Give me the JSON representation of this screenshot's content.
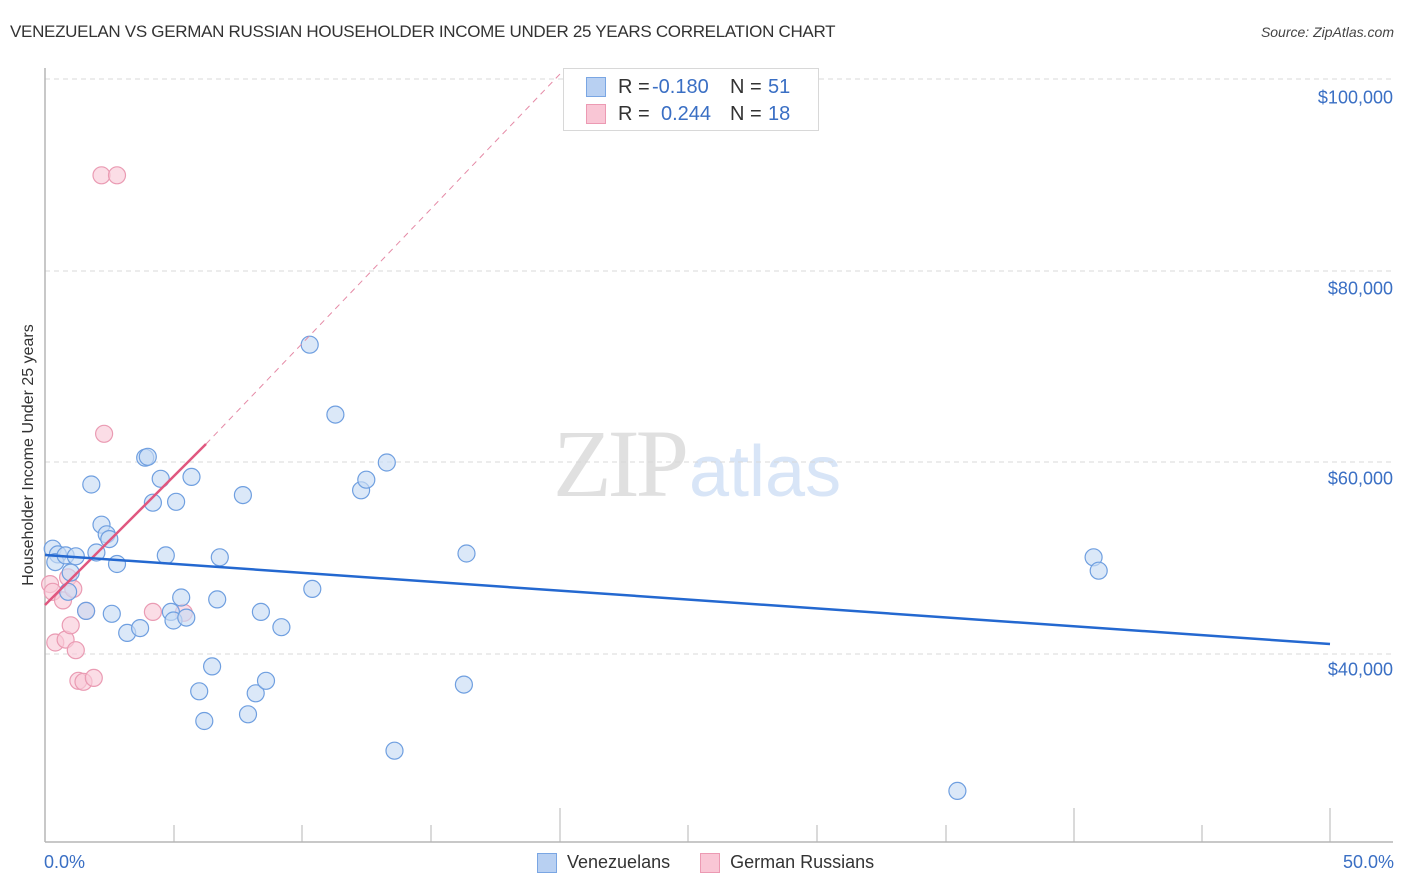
{
  "header": {
    "title": "VENEZUELAN VS GERMAN RUSSIAN HOUSEHOLDER INCOME UNDER 25 YEARS CORRELATION CHART",
    "source": "Source: ZipAtlas.com"
  },
  "legend": {
    "rows": [
      {
        "name": "Venezuelans",
        "r_label": "R =",
        "r_value": "-0.180",
        "n_label": "N =",
        "n_value": "51",
        "color": "#b8d0f2",
        "border": "#7aa6e3"
      },
      {
        "name": "German Russians",
        "r_label": "R =",
        "r_value": "0.244",
        "n_label": "N =",
        "n_value": "18",
        "color": "#f9c6d5",
        "border": "#ec9ab3"
      }
    ]
  },
  "axes": {
    "y_label": "Householder Income Under 25 years",
    "y_ticks": [
      "$100,000",
      "$80,000",
      "$60,000",
      "$40,000"
    ],
    "x_left_label": "0.0%",
    "x_right_label": "50.0%"
  },
  "watermark": {
    "zip": "ZIP",
    "atlas": "atlas"
  },
  "colors": {
    "blue_point_fill": "#c7dbf5",
    "blue_point_stroke": "#6f9fe0",
    "blue_trend": "#2468d0",
    "pink_point_fill": "#f9cbd8",
    "pink_point_stroke": "#ea9bb3",
    "pink_trend": "#e0577f",
    "tick_label": "#3a6fc4",
    "grid": "#d9d9d9"
  },
  "chart_data": {
    "type": "scatter",
    "title": "VENEZUELAN VS GERMAN RUSSIAN HOUSEHOLDER INCOME UNDER 25 YEARS CORRELATION CHART",
    "xlabel": "",
    "ylabel": "Householder Income Under 25 years",
    "xlim": [
      0,
      50
    ],
    "ylim": [
      22500,
      102500
    ],
    "x_unit": "%",
    "y_ticks": [
      40000,
      60000,
      80000,
      100000
    ],
    "grid": true,
    "legend_position": "bottom-center",
    "series": [
      {
        "name": "Venezuelans",
        "r": -0.18,
        "n": 51,
        "trend": {
          "x": [
            0,
            50
          ],
          "y": [
            49900,
            40900
          ]
        },
        "points": [
          [
            0.3,
            51.0
          ],
          [
            0.5,
            50.4
          ],
          [
            0.4,
            49.6
          ],
          [
            0.8,
            50.3
          ],
          [
            1.2,
            50.2
          ],
          [
            1.0,
            48.5
          ],
          [
            0.9,
            46.5
          ],
          [
            1.6,
            44.5
          ],
          [
            1.8,
            57.7
          ],
          [
            2.0,
            50.6
          ],
          [
            2.2,
            53.5
          ],
          [
            2.4,
            52.5
          ],
          [
            2.5,
            52.0
          ],
          [
            2.8,
            49.4
          ],
          [
            2.6,
            44.2
          ],
          [
            3.2,
            42.2
          ],
          [
            3.7,
            42.7
          ],
          [
            3.9,
            60.5
          ],
          [
            4.0,
            60.6
          ],
          [
            4.2,
            55.8
          ],
          [
            4.5,
            58.3
          ],
          [
            4.7,
            50.3
          ],
          [
            4.9,
            44.4
          ],
          [
            5.0,
            43.5
          ],
          [
            5.1,
            55.9
          ],
          [
            5.3,
            45.9
          ],
          [
            5.5,
            43.8
          ],
          [
            5.7,
            58.5
          ],
          [
            6.0,
            36.1
          ],
          [
            6.2,
            33.0
          ],
          [
            6.5,
            38.7
          ],
          [
            6.7,
            45.7
          ],
          [
            6.8,
            50.1
          ],
          [
            7.7,
            56.6
          ],
          [
            7.9,
            33.7
          ],
          [
            8.2,
            35.9
          ],
          [
            8.4,
            44.4
          ],
          [
            8.6,
            37.2
          ],
          [
            9.2,
            42.8
          ],
          [
            10.3,
            72.3
          ],
          [
            10.4,
            46.8
          ],
          [
            11.3,
            65.0
          ],
          [
            12.3,
            57.1
          ],
          [
            12.5,
            58.2
          ],
          [
            13.3,
            60.0
          ],
          [
            13.6,
            29.9
          ],
          [
            16.3,
            36.8
          ],
          [
            16.4,
            50.5
          ],
          [
            35.5,
            25.7
          ],
          [
            40.8,
            50.1
          ],
          [
            41.0,
            48.7
          ]
        ]
      },
      {
        "name": "German Russians",
        "r": 0.244,
        "n": 18,
        "trend": {
          "x": [
            0,
            6.3
          ],
          "y": [
            45100,
            61700
          ],
          "dashed_extension_to": [
            20,
            100000
          ]
        },
        "points": [
          [
            0.2,
            47.3
          ],
          [
            0.3,
            46.5
          ],
          [
            0.4,
            41.2
          ],
          [
            0.7,
            45.6
          ],
          [
            0.8,
            41.5
          ],
          [
            0.9,
            48.0
          ],
          [
            1.0,
            43.0
          ],
          [
            1.1,
            46.8
          ],
          [
            1.2,
            40.4
          ],
          [
            1.3,
            37.2
          ],
          [
            1.5,
            37.1
          ],
          [
            1.6,
            44.5
          ],
          [
            1.9,
            37.5
          ],
          [
            2.2,
            90.0
          ],
          [
            2.8,
            90.0
          ],
          [
            2.3,
            63.0
          ],
          [
            4.2,
            44.4
          ],
          [
            5.4,
            44.3
          ]
        ],
        "y_unit_note": "point y values in $ thousands"
      }
    ]
  }
}
